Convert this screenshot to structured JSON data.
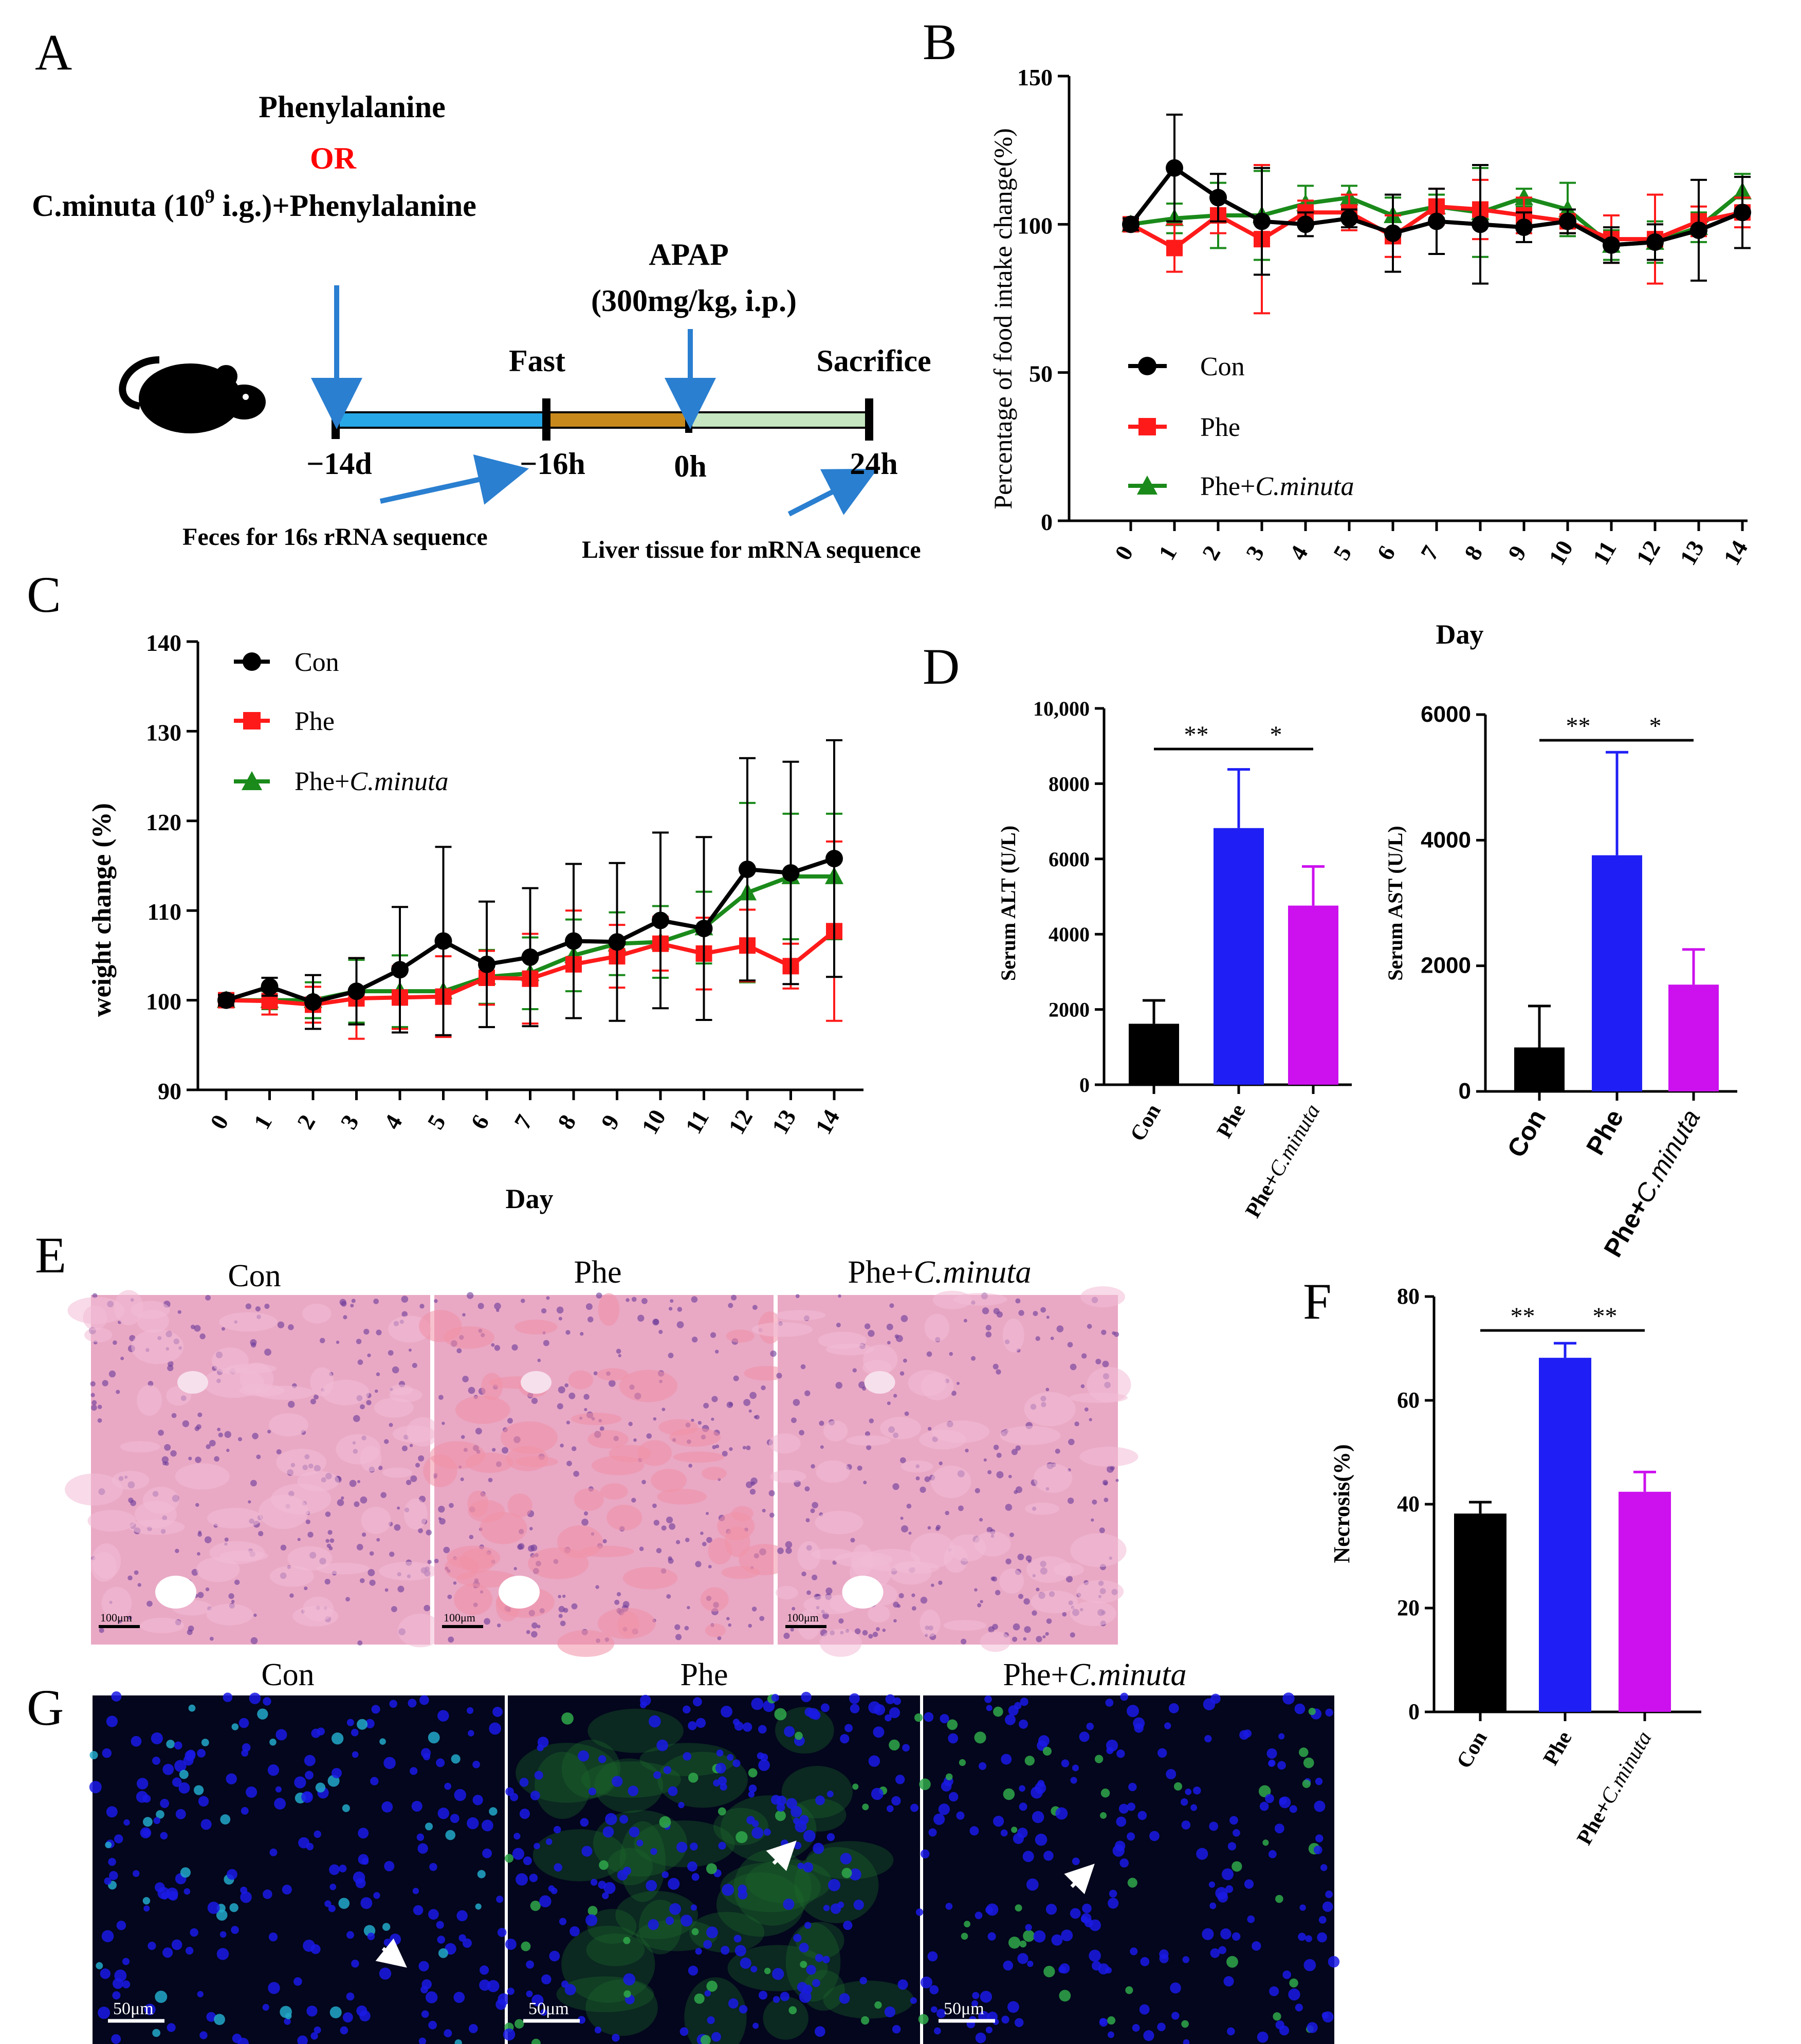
{
  "panel_letters": {
    "a": "A",
    "b": "B",
    "c": "C",
    "d": "D",
    "e": "E",
    "f": "F",
    "g": "G"
  },
  "scheme": {
    "line1": "Phenylalanine",
    "line2": "OR",
    "line3_pre": "C.minuta (10",
    "line3_sup": "9",
    "line3_post": " i.g.)+Phenylalanine",
    "apap": "APAP",
    "apap_dose": "(300mg/kg, i.p.)",
    "fast": "Fast",
    "sacrifice": "Sacrifice",
    "t_m14d": "−14d",
    "t_m16h": "−16h",
    "t_0h": "0h",
    "t_24h": "24h",
    "feces": "Feces for 16s rRNA sequence",
    "liver": "Liver tissue for mRNA sequence"
  },
  "colors": {
    "con": "#000000",
    "phe": "#ff1a1a",
    "phe_cm": "#1a8a1a",
    "bar_phe": "#1f1ff5",
    "bar_phecm": "#cc11ee",
    "seg1": "#27a7e6",
    "seg2": "#c8891c",
    "seg3": "#c5e6c0",
    "arrow": "#2a7fd0",
    "or": "#ff0000",
    "he_bg": "#e9a9c5",
    "if_bg": "#03061c"
  },
  "legend": {
    "con": "Con",
    "phe": "Phe",
    "phe_cm_pre": "Phe+",
    "phe_cm_it": "C.minuta"
  },
  "chart_data": [
    {
      "id": "B",
      "type": "line",
      "title": "",
      "xlabel": "Day",
      "ylabel": "Percentage of food intake change(%)",
      "x": [
        0,
        1,
        2,
        3,
        4,
        5,
        6,
        7,
        8,
        9,
        10,
        11,
        12,
        13,
        14
      ],
      "ylim": [
        0,
        150
      ],
      "yticks": [
        0,
        50,
        100,
        150
      ],
      "series": [
        {
          "name": "Con",
          "values": [
            100,
            119,
            109,
            101,
            100,
            102,
            97,
            101,
            100,
            99,
            101,
            93,
            94,
            98,
            104
          ],
          "err": [
            2,
            18,
            8,
            18,
            4,
            3,
            13,
            11,
            20,
            5,
            4,
            6,
            6,
            17,
            12
          ]
        },
        {
          "name": "Phe",
          "values": [
            100,
            92,
            103,
            95,
            104,
            104,
            96,
            106,
            105,
            103,
            101,
            95,
            95,
            101,
            104
          ],
          "err": [
            2,
            8,
            6,
            25,
            4,
            6,
            7,
            6,
            10,
            6,
            4,
            8,
            15,
            5,
            5
          ]
        },
        {
          "name": "Phe+C.minuta",
          "values": [
            100,
            102,
            103,
            103,
            107,
            109,
            103,
            106,
            104,
            109,
            105,
            93,
            94,
            99,
            111
          ],
          "err": [
            2,
            5,
            11,
            15,
            6,
            4,
            6,
            4,
            15,
            3,
            9,
            5,
            7,
            5,
            6
          ]
        }
      ]
    },
    {
      "id": "C",
      "type": "line",
      "title": "",
      "xlabel": "Day",
      "ylabel": "weight change (%)",
      "x": [
        0,
        1,
        2,
        3,
        4,
        5,
        6,
        7,
        8,
        9,
        10,
        11,
        12,
        13,
        14
      ],
      "ylim": [
        90,
        140
      ],
      "yticks": [
        90,
        100,
        110,
        120,
        130,
        140
      ],
      "series": [
        {
          "name": "Con",
          "values": [
            100,
            101.5,
            99.8,
            101,
            103.4,
            106.6,
            104,
            104.8,
            106.6,
            106.5,
            108.9,
            108,
            114.6,
            114.2,
            115.8
          ],
          "err": [
            0.6,
            1,
            3,
            3.7,
            7,
            10.5,
            7,
            7.7,
            8.6,
            8.8,
            9.8,
            10.2,
            12.4,
            12.4,
            13.2
          ]
        },
        {
          "name": "Phe",
          "values": [
            100,
            99.9,
            99.5,
            100.2,
            100.3,
            100.4,
            102.5,
            102.4,
            104,
            104.9,
            106.3,
            105.2,
            106.1,
            103.8,
            107.7
          ],
          "err": [
            0.5,
            1.5,
            2,
            4.5,
            3.5,
            4.5,
            3,
            5,
            6,
            3.5,
            3,
            4,
            4,
            2.5,
            10
          ]
        },
        {
          "name": "Phe+C.minuta",
          "values": [
            100,
            100,
            100,
            101,
            101,
            101,
            102.6,
            103,
            105,
            106.3,
            106.5,
            108.1,
            112,
            113.8,
            113.8
          ],
          "err": [
            0.5,
            1,
            2,
            3.5,
            4,
            5,
            3,
            4,
            4,
            3.5,
            4,
            4,
            10,
            7,
            7
          ]
        }
      ]
    },
    {
      "id": "D-ALT",
      "type": "bar",
      "title": "",
      "ylabel": "Serum ALT (U/L)",
      "categories": [
        "Con",
        "Phe",
        "Phe+C.minuta"
      ],
      "values": [
        1620,
        6820,
        4760
      ],
      "err": [
        620,
        1560,
        1040
      ],
      "ylim": [
        0,
        10000
      ],
      "yticks": [
        0,
        2000,
        4000,
        6000,
        8000,
        10000
      ],
      "ytick_labels": [
        "0",
        "2000",
        "4000",
        "6000",
        "8000",
        "10,000"
      ],
      "sig": [
        {
          "from": 0,
          "to": 1,
          "label": "**"
        },
        {
          "from": 1,
          "to": 2,
          "label": "*"
        }
      ]
    },
    {
      "id": "D-AST",
      "type": "bar",
      "title": "",
      "ylabel": "Serum AST (U/L)",
      "categories": [
        "Con",
        "Phe",
        "Phe+C.minuta"
      ],
      "values": [
        700,
        3760,
        1700
      ],
      "err": [
        660,
        1640,
        560
      ],
      "ylim": [
        0,
        6000
      ],
      "yticks": [
        0,
        2000,
        4000,
        6000
      ],
      "ytick_labels": [
        "0",
        "2000",
        "4000",
        "6000"
      ],
      "sig": [
        {
          "from": 0,
          "to": 1,
          "label": "**"
        },
        {
          "from": 1,
          "to": 2,
          "label": "*"
        }
      ]
    },
    {
      "id": "F",
      "type": "bar",
      "title": "",
      "ylabel": "Necrosis(%)",
      "categories": [
        "Con",
        "Phe",
        "Phe+C.minuta"
      ],
      "values": [
        38.2,
        68.2,
        42.4
      ],
      "err": [
        2.2,
        2.8,
        3.8
      ],
      "ylim": [
        0,
        80
      ],
      "yticks": [
        0,
        20,
        40,
        60,
        80
      ],
      "ytick_labels": [
        "0",
        "20",
        "40",
        "60",
        "80"
      ],
      "sig": [
        {
          "from": 0,
          "to": 1,
          "label": "**"
        },
        {
          "from": 1,
          "to": 2,
          "label": "**"
        }
      ]
    }
  ],
  "panel_e": {
    "titles": [
      "Con",
      "Phe"
    ],
    "title3_pre": "Phe+",
    "title3_it": "C.minuta",
    "scale_label": "100μm"
  },
  "panel_g": {
    "titles": [
      "Con",
      "Phe"
    ],
    "title3_pre": "Phe+",
    "title3_it": "C.minuta",
    "scale_label": "50μm"
  }
}
